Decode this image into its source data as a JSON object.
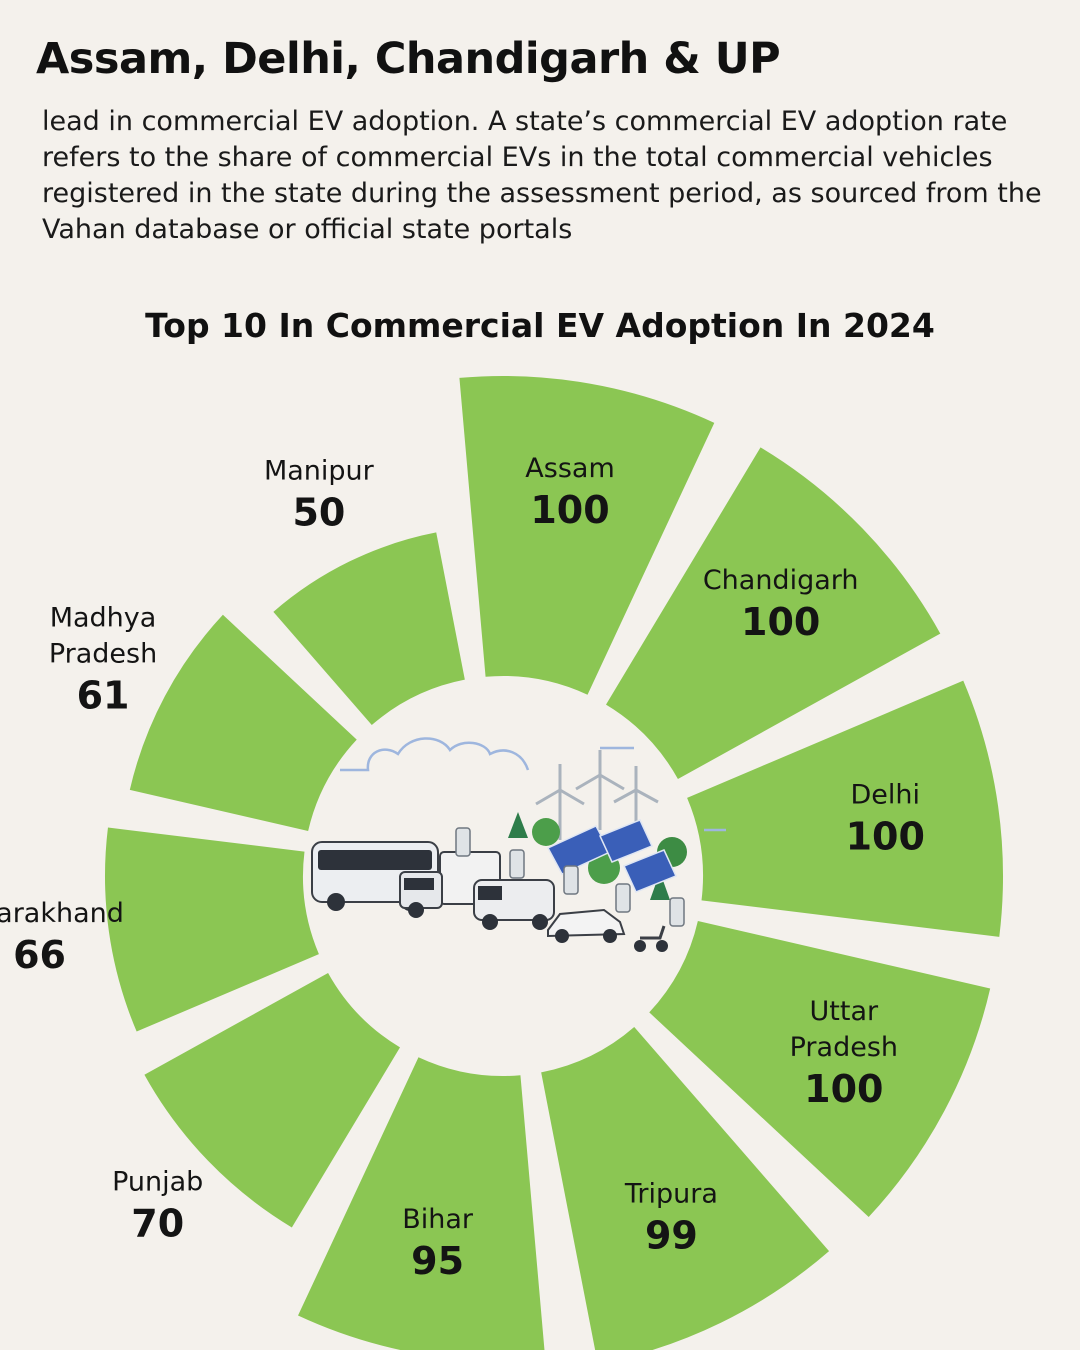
{
  "headline": "Assam, Delhi, Chandigarh & UP",
  "intro": "lead in commercial EV adoption. A state’s commercial EV adoption rate refers to the share of commercial EVs in the total commercial vehicles registered in the state during the assessment period, as sourced from the Vahan database or official state portals",
  "chart_data": {
    "type": "bar",
    "title": "Top 10 In Commercial EV Adoption In 2024",
    "categories": [
      "Assam",
      "Chandigarh",
      "Delhi",
      "Uttar Pradesh",
      "Tripura",
      "Bihar",
      "Punjab",
      "Uttarakhand",
      "Madhya Pradesh",
      "Manipur"
    ],
    "values": [
      100,
      100,
      100,
      100,
      99,
      95,
      70,
      66,
      61,
      50
    ],
    "label_lines": [
      [
        "Assam"
      ],
      [
        "Chandigarh"
      ],
      [
        "Delhi"
      ],
      [
        "Uttar",
        "Pradesh"
      ],
      [
        "Tripura"
      ],
      [
        "Bihar"
      ],
      [
        "Punjab"
      ],
      [
        "Uttarakhand"
      ],
      [
        "Madhya",
        "Pradesh"
      ],
      [
        "Manipur"
      ]
    ],
    "ylim": [
      0,
      100
    ],
    "layout": "radial",
    "bar_color": "#8bc653",
    "grid": false,
    "legend": "none"
  }
}
